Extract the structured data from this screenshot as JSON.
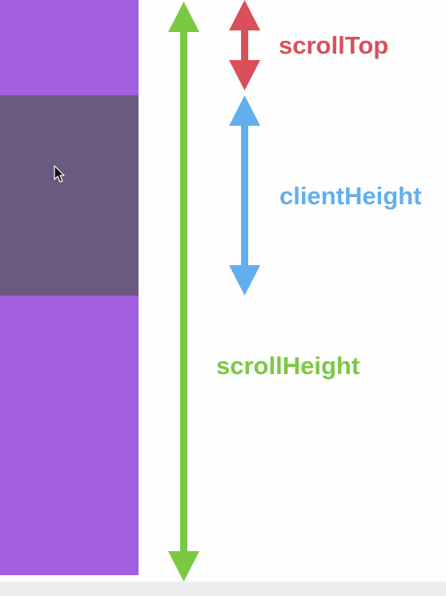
{
  "labels": {
    "scroll_top": "scrollTop",
    "client_height": "clientHeight",
    "scroll_height": "scrollHeight"
  },
  "colors": {
    "content": "#a35fdd",
    "viewport": "#6a5a80",
    "scroll_top": "#d9505a",
    "client_height": "#63aeee",
    "scroll_height": "#7ac943",
    "background": "#fefefe"
  },
  "icons": {
    "cursor": "mouse-pointer-icon"
  }
}
